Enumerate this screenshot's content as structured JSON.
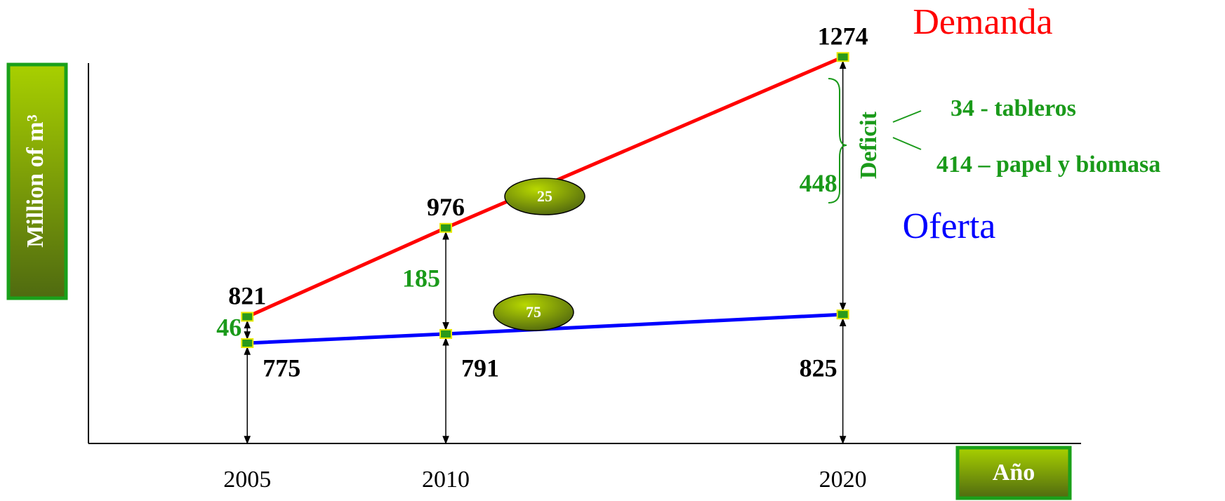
{
  "chart_data": {
    "type": "line",
    "x": [
      2005,
      2010,
      2020
    ],
    "xlim": [
      2001,
      2026
    ],
    "ylim": [
      600,
      1300
    ],
    "y_label": "Million of m³",
    "x_label": "Año",
    "series": [
      {
        "name": "Demanda",
        "color": "#ff0000",
        "values": [
          821,
          976,
          1274
        ]
      },
      {
        "name": "Oferta",
        "color": "#0000ff",
        "values": [
          775,
          791,
          825
        ]
      }
    ],
    "gaps": {
      "color": "#1a9a1a",
      "values": [
        46,
        185,
        448
      ]
    },
    "shares": [
      25,
      75
    ],
    "deficit": {
      "label": "Deficit",
      "items": [
        "34 - tableros",
        "414 – papel y biomasa"
      ]
    }
  }
}
